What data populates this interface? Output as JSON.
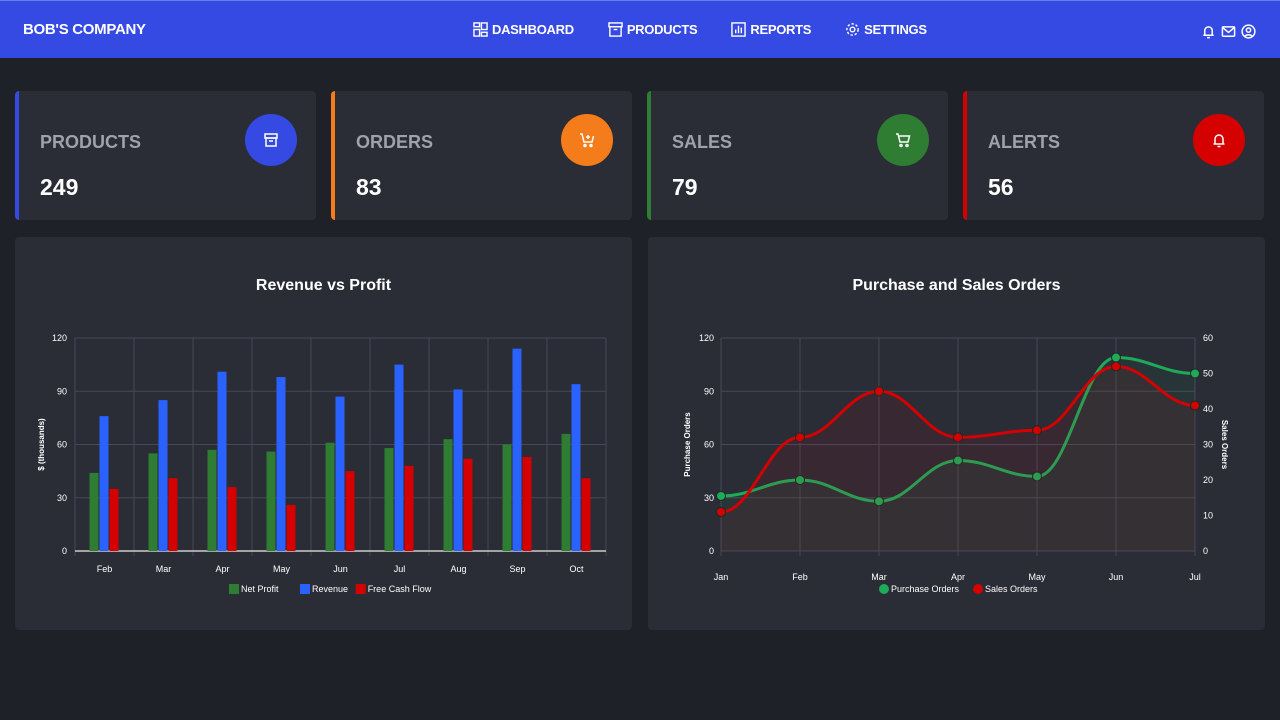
{
  "header": {
    "brand": "BOB'S COMPANY",
    "nav": [
      {
        "label": "DASHBOARD",
        "icon": "dashboard-icon"
      },
      {
        "label": "PRODUCTS",
        "icon": "archive-icon"
      },
      {
        "label": "REPORTS",
        "icon": "report-icon"
      },
      {
        "label": "SETTINGS",
        "icon": "gear-icon"
      }
    ],
    "icons": [
      "bell-icon",
      "mail-icon",
      "user-circle-icon"
    ]
  },
  "cards": [
    {
      "label": "PRODUCTS",
      "value": "249",
      "color": "#3549e3",
      "icon": "archive-icon"
    },
    {
      "label": "ORDERS",
      "value": "83",
      "color": "#f57c1a",
      "icon": "cart-plus-icon"
    },
    {
      "label": "SALES",
      "value": "79",
      "color": "#2e7d32",
      "icon": "cart-icon"
    },
    {
      "label": "ALERTS",
      "value": "56",
      "color": "#d50000",
      "icon": "bell-icon"
    }
  ],
  "chart_data": [
    {
      "type": "bar",
      "title": "Revenue vs Profit",
      "ylabel": "$ (thousands)",
      "xlabel": "",
      "ylim": [
        0,
        120
      ],
      "yticks": [
        "0",
        "30",
        "60",
        "90",
        "120"
      ],
      "categories": [
        "Feb",
        "Mar",
        "Apr",
        "May",
        "Jun",
        "Jul",
        "Aug",
        "Sep",
        "Oct"
      ],
      "series": [
        {
          "name": "Net Profit",
          "color": "#2e7d32",
          "values": [
            44,
            55,
            57,
            56,
            61,
            58,
            63,
            60,
            66
          ]
        },
        {
          "name": "Revenue",
          "color": "#2962ff",
          "values": [
            76,
            85,
            101,
            98,
            87,
            105,
            91,
            114,
            94
          ]
        },
        {
          "name": "Free Cash Flow",
          "color": "#d50000",
          "values": [
            35,
            41,
            36,
            26,
            45,
            48,
            52,
            53,
            41
          ]
        }
      ],
      "legend": "bottom",
      "grid": true
    },
    {
      "type": "line",
      "title": "Purchase and Sales Orders",
      "ylabel": "Purchase Orders",
      "y2label": "Sales Orders",
      "ylim": [
        0,
        120
      ],
      "y2lim": [
        0,
        60
      ],
      "yticks": [
        "0",
        "30",
        "60",
        "90",
        "120"
      ],
      "y2ticks": [
        "0",
        "10",
        "20",
        "30",
        "40",
        "50",
        "60"
      ],
      "categories": [
        "Jan",
        "Feb",
        "Mar",
        "Apr",
        "May",
        "Jun",
        "Jul"
      ],
      "series": [
        {
          "name": "Purchase Orders",
          "axis": "left",
          "color": "#1faa5a",
          "values": [
            31,
            40,
            28,
            51,
            42,
            109,
            100
          ]
        },
        {
          "name": "Sales Orders",
          "axis": "right",
          "color": "#d50000",
          "values": [
            11,
            32,
            45,
            32,
            34,
            52,
            41
          ]
        }
      ],
      "legend": "bottom",
      "grid": true
    }
  ]
}
